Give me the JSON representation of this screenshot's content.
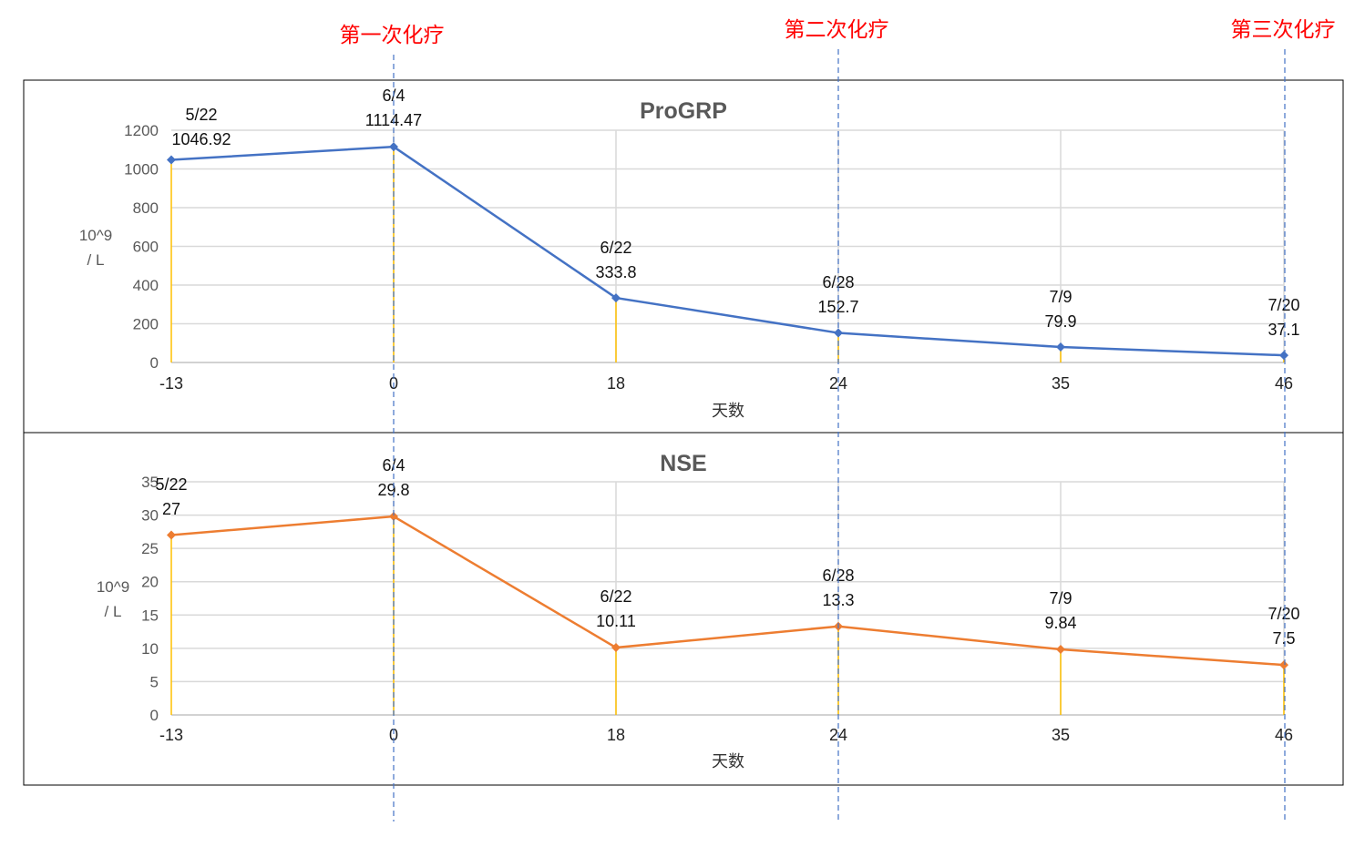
{
  "chemo_markers": [
    {
      "label": "第一次化疗",
      "x": 0
    },
    {
      "label": "第二次化疗",
      "x": 24
    },
    {
      "label": "第三次化疗",
      "x": 46
    }
  ],
  "colors": {
    "progrp": "#4472c4",
    "nse": "#ed7d31",
    "droplines": "#ffc000",
    "chemo_lines": "#4472c4",
    "chemo_text": "#ff0000",
    "grid": "#d9d9d9"
  },
  "chart_data": [
    {
      "type": "line",
      "title": "ProGRP",
      "xlabel": "天数",
      "ylabel": [
        "10^9",
        "/ L"
      ],
      "categories": [
        "-13",
        "0",
        "18",
        "24",
        "35",
        "46"
      ],
      "dates": [
        "5/22",
        "6/4",
        "6/22",
        "6/28",
        "7/9",
        "7/20"
      ],
      "values": [
        1046.92,
        1114.47,
        333.8,
        152.7,
        79.9,
        37.1
      ],
      "value_labels": [
        "1046.92",
        "1114.47",
        "333.8",
        "152.7",
        "79.9",
        "37.1"
      ],
      "ylim": [
        0,
        1200
      ],
      "yticks": [
        "0",
        "200",
        "400",
        "600",
        "800",
        "1000",
        "1200"
      ],
      "grid": true
    },
    {
      "type": "line",
      "title": "NSE",
      "xlabel": "天数",
      "ylabel": [
        "10^9",
        "/ L"
      ],
      "categories": [
        "-13",
        "0",
        "18",
        "24",
        "35",
        "46"
      ],
      "dates": [
        "5/22",
        "6/4",
        "6/22",
        "6/28",
        "7/9",
        "7/20"
      ],
      "values": [
        27,
        29.8,
        10.11,
        13.3,
        9.84,
        7.5
      ],
      "value_labels": [
        "27",
        "29.8",
        "10.11",
        "13.3",
        "9.84",
        "7.5"
      ],
      "ylim": [
        0,
        35
      ],
      "yticks": [
        "0",
        "5",
        "10",
        "15",
        "20",
        "25",
        "30",
        "35"
      ],
      "grid": true
    }
  ]
}
